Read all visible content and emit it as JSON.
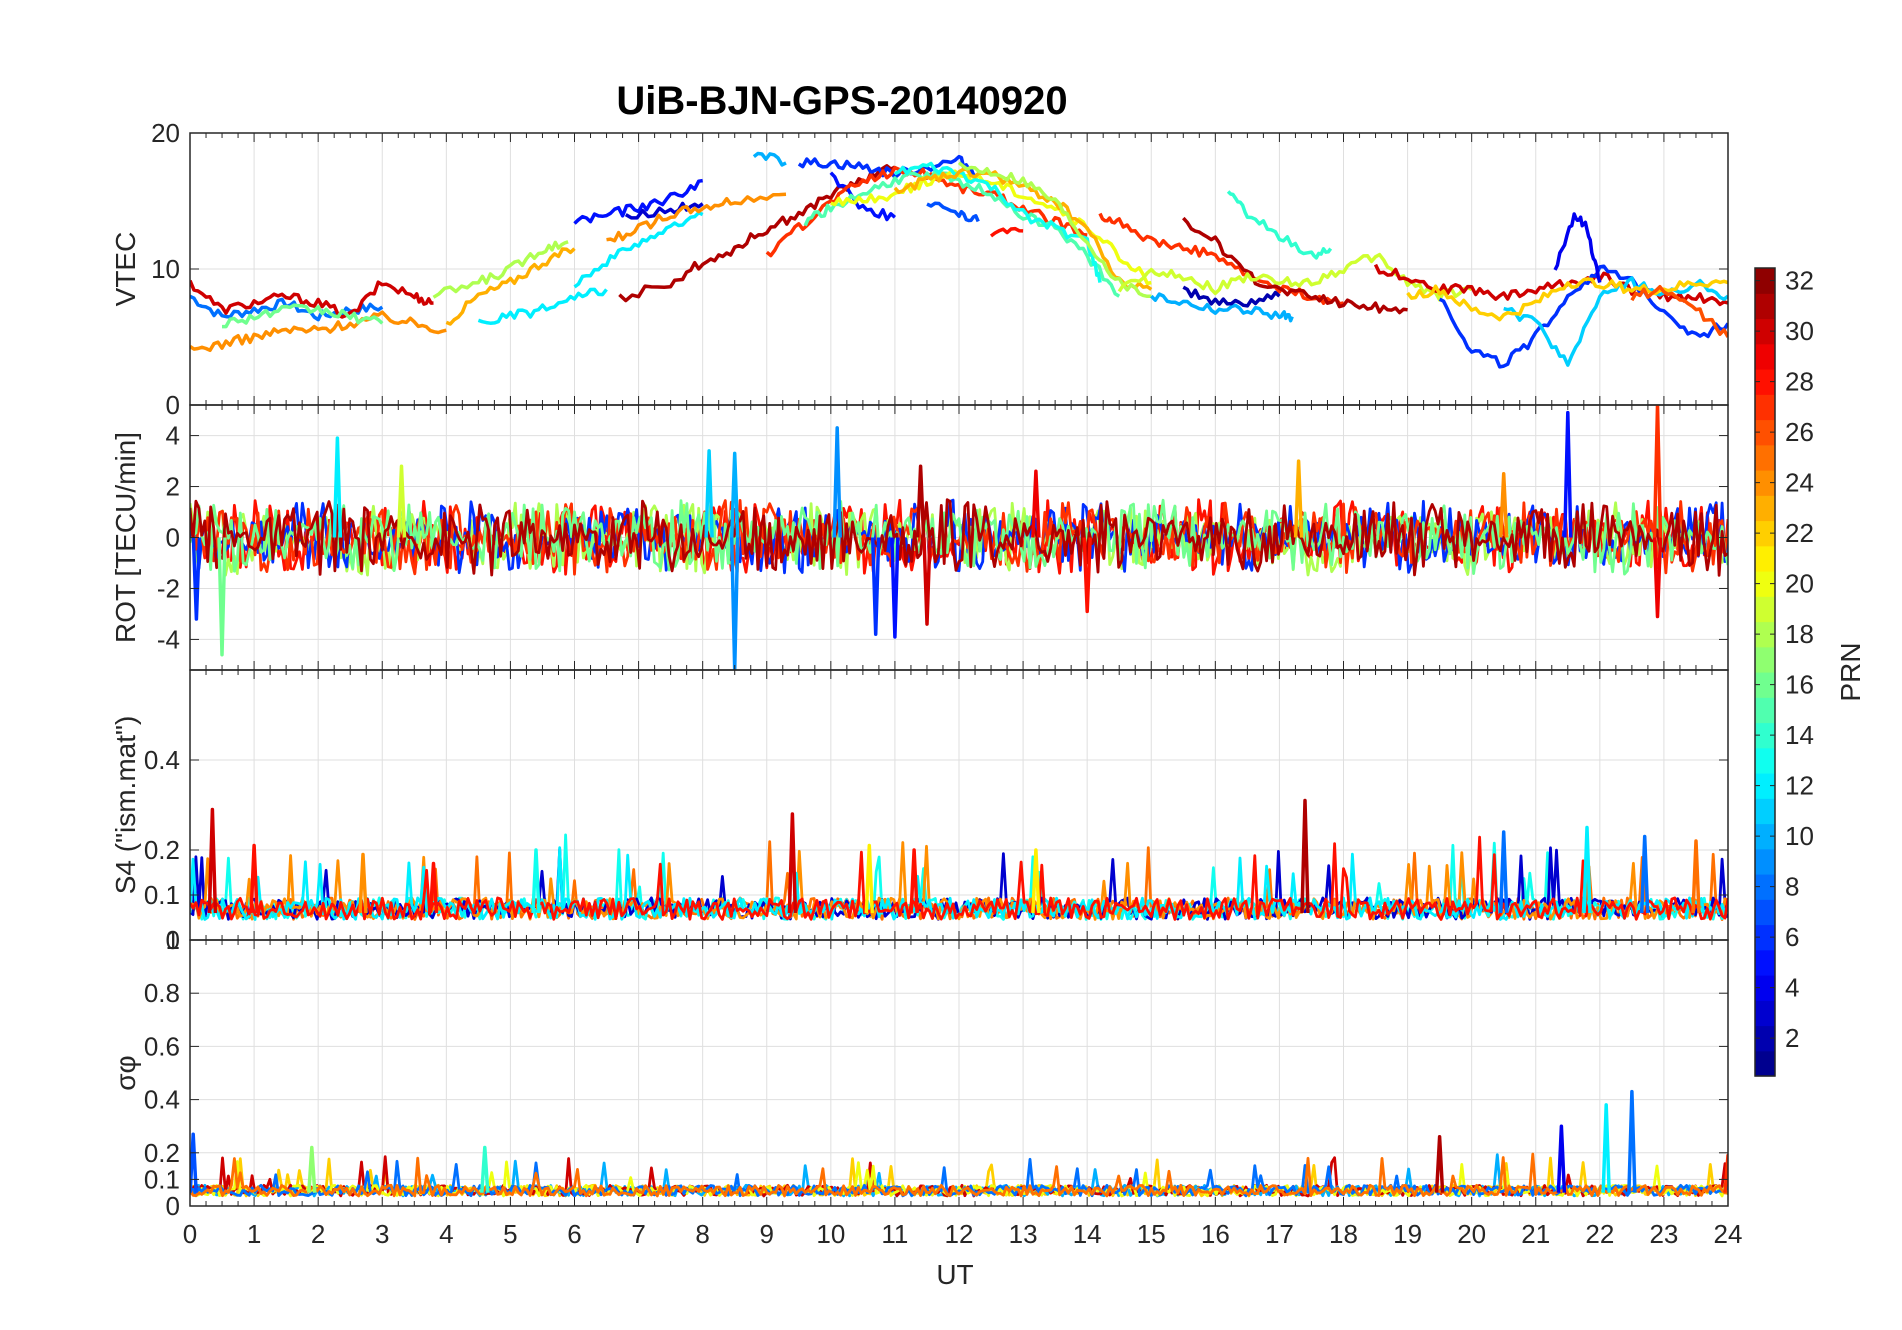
{
  "chart_data": {
    "type": "line",
    "title": "UiB-BJN-GPS-20140920",
    "xlabel": "UT",
    "xlim": [
      0,
      24
    ],
    "x_ticks": [
      "0",
      "1",
      "2",
      "3",
      "4",
      "5",
      "6",
      "7",
      "8",
      "9",
      "10",
      "11",
      "12",
      "13",
      "14",
      "15",
      "16",
      "17",
      "18",
      "19",
      "20",
      "21",
      "22",
      "23",
      "24"
    ],
    "grid": true,
    "panels": [
      {
        "name": "vtec",
        "ylabel": "VTEC",
        "ylim": [
          0,
          20
        ],
        "y_ticks": [
          "0",
          "10",
          "20"
        ],
        "y_tick_values": [
          0,
          10,
          20
        ],
        "series": [
          {
            "prn": 8,
            "x": [
              0,
              0.5,
              1,
              1.5,
              2,
              2.5,
              3
            ],
            "y": [
              8,
              6.5,
              7,
              7.5,
              6.5,
              7,
              7.2
            ]
          },
          {
            "prn": 30,
            "x": [
              0,
              0.5,
              1,
              1.5,
              2,
              2.5,
              3,
              3.5,
              3.8
            ],
            "y": [
              9,
              7,
              7.5,
              8,
              7.5,
              6.5,
              9,
              8,
              7.5
            ]
          },
          {
            "prn": 24,
            "x": [
              0,
              0.5,
              1,
              1.5,
              2,
              2.5,
              3,
              3.5,
              4
            ],
            "y": [
              4,
              4.5,
              5,
              5.5,
              5.5,
              6,
              6.5,
              6,
              5.5
            ]
          },
          {
            "prn": 16,
            "x": [
              0.5,
              1,
              1.5,
              2,
              2.5,
              3
            ],
            "y": [
              6,
              6.5,
              7,
              7,
              6.5,
              6
            ]
          },
          {
            "prn": 18,
            "x": [
              3.8,
              4.5,
              5,
              5.5,
              5.9
            ],
            "y": [
              8,
              9,
              10,
              11.5,
              12
            ]
          },
          {
            "prn": 23,
            "x": [
              4,
              4.5,
              5,
              5.5,
              6
            ],
            "y": [
              6,
              8,
              9,
              10.5,
              11.5
            ]
          },
          {
            "prn": 12,
            "x": [
              4.5,
              5,
              5.5,
              6,
              6.5
            ],
            "y": [
              6,
              6.5,
              7,
              7.8,
              8.5
            ]
          },
          {
            "prn": 12,
            "x": [
              6,
              6.5,
              7,
              7.5,
              8
            ],
            "y": [
              9,
              10.5,
              12,
              13,
              14
            ]
          },
          {
            "prn": 5,
            "x": [
              6,
              6.5,
              7,
              7.5,
              8
            ],
            "y": [
              13.5,
              14,
              14.5,
              15.2,
              16.5
            ]
          },
          {
            "prn": 3,
            "x": [
              6.8,
              7.5,
              8
            ],
            "y": [
              14,
              14.3,
              14.8
            ]
          },
          {
            "prn": 24,
            "x": [
              6.5,
              7,
              7.5,
              8,
              8.5,
              9.3
            ],
            "y": [
              12,
              13,
              14,
              14.5,
              15,
              15.5
            ]
          },
          {
            "prn": 31,
            "x": [
              6.7,
              7.5,
              8,
              8.5,
              9,
              9.5,
              10,
              10.5,
              11
            ],
            "y": [
              7.8,
              9,
              10.5,
              11.5,
              13,
              14,
              15.5,
              16.5,
              17.5
            ]
          },
          {
            "prn": 10,
            "x": [
              8.8,
              9.3
            ],
            "y": [
              18.5,
              17.8
            ]
          },
          {
            "prn": 6,
            "x": [
              9.5,
              10,
              10.5,
              11,
              11.5,
              12,
              12.3
            ],
            "y": [
              17.8,
              17.8,
              17.5,
              17,
              17.5,
              18,
              17
            ]
          },
          {
            "prn": 5,
            "x": [
              10,
              10.5,
              11
            ],
            "y": [
              17,
              14.5,
              13.8
            ]
          },
          {
            "prn": 27,
            "x": [
              9,
              9.5,
              10,
              10.5,
              11,
              11.5,
              12,
              12.5,
              13,
              13.5,
              14
            ],
            "y": [
              11,
              13,
              15,
              16.5,
              17.2,
              17,
              16,
              15.5,
              14.5,
              13.5,
              12.5
            ]
          },
          {
            "prn": 15,
            "x": [
              9.6,
              10,
              10.5,
              11,
              11.5,
              12,
              12.5,
              13,
              13.5,
              14,
              14.5
            ],
            "y": [
              13.5,
              14.5,
              15.5,
              16.5,
              17,
              16.5,
              15.5,
              14,
              13,
              11,
              8
            ]
          },
          {
            "prn": 20,
            "x": [
              10,
              10.5,
              11,
              11.5,
              12,
              12.5,
              13,
              13.5,
              14,
              14.5,
              15
            ],
            "y": [
              15,
              15,
              15.5,
              16.5,
              17,
              16.5,
              15.5,
              14.5,
              13,
              11,
              9
            ]
          },
          {
            "prn": 13,
            "x": [
              11,
              11.5,
              12,
              12.5,
              13,
              13.5,
              14,
              14.2
            ],
            "y": [
              17,
              17.5,
              17,
              16,
              14,
              13,
              12,
              9
            ]
          },
          {
            "prn": 23,
            "x": [
              11,
              11.5,
              12,
              12.5,
              13,
              13.5,
              14,
              14.5,
              15
            ],
            "y": [
              15.8,
              16.5,
              17,
              17,
              16,
              15,
              13,
              9,
              8.5
            ]
          },
          {
            "prn": 18,
            "x": [
              12,
              12.5,
              13,
              13.5,
              14,
              14.5,
              15
            ],
            "y": [
              17.5,
              17.2,
              16.5,
              15,
              12,
              9,
              8
            ]
          },
          {
            "prn": 7,
            "x": [
              11.5,
              12,
              12.3
            ],
            "y": [
              15,
              14,
              13.5
            ]
          },
          {
            "prn": 28,
            "x": [
              12.5,
              13
            ],
            "y": [
              12.5,
              12.8
            ]
          },
          {
            "prn": 27,
            "x": [
              14.2,
              14.5,
              15,
              15.5,
              16,
              16.5,
              17,
              17.5,
              18
            ],
            "y": [
              14,
              13.5,
              12,
              11.5,
              11,
              9.5,
              8.5,
              8,
              7.5
            ]
          },
          {
            "prn": 31,
            "x": [
              15.5,
              16,
              16.5,
              17,
              17.5,
              18,
              18.5,
              19
            ],
            "y": [
              13.5,
              12,
              9.5,
              8.5,
              8,
              7.5,
              7.2,
              7
            ]
          },
          {
            "prn": 14,
            "x": [
              16.2,
              16.5,
              17,
              17.5,
              17.8
            ],
            "y": [
              16,
              14,
              12.5,
              11,
              11.5
            ]
          },
          {
            "prn": 19,
            "x": [
              14.5,
              15,
              15.5,
              16,
              16.5,
              17,
              17.5,
              18,
              18.5,
              19,
              19.5,
              20
            ],
            "y": [
              8.5,
              10,
              9.5,
              8.5,
              9.5,
              9,
              9,
              10,
              11,
              9,
              8,
              8.5
            ]
          },
          {
            "prn": 10,
            "x": [
              15,
              15.5,
              16,
              16.5,
              17,
              17.2
            ],
            "y": [
              8,
              7.5,
              7,
              7,
              6.5,
              6.5
            ]
          },
          {
            "prn": 2,
            "x": [
              15.5,
              16,
              16.5,
              17
            ],
            "y": [
              8.5,
              7.5,
              7.5,
              8
            ]
          },
          {
            "prn": 30,
            "x": [
              18.5,
              19,
              19.5,
              20,
              20.5,
              21,
              21.5,
              22,
              22.5,
              23,
              23.5,
              24
            ],
            "y": [
              10,
              9.5,
              8.5,
              8.5,
              8,
              8.5,
              9,
              9.5,
              8.5,
              8,
              8,
              7.5
            ]
          },
          {
            "prn": 6,
            "x": [
              19.5,
              20,
              20.5,
              21,
              21.5,
              22,
              22.5,
              23,
              23.5,
              24
            ],
            "y": [
              8,
              4,
              3,
              5,
              8,
              10,
              9,
              7,
              5,
              6
            ]
          },
          {
            "prn": 4,
            "x": [
              21.3,
              21.6,
              21.8,
              22
            ],
            "y": [
              10,
              14,
              13,
              9
            ]
          },
          {
            "prn": 11,
            "x": [
              20.5,
              21,
              21.5,
              22,
              22.5,
              23,
              23.5,
              24
            ],
            "y": [
              7,
              6,
              3,
              8,
              9,
              8,
              9,
              8
            ]
          },
          {
            "prn": 22,
            "x": [
              19,
              19.5,
              20,
              20.5,
              21,
              21.5,
              22,
              22.5,
              23,
              23.5,
              24
            ],
            "y": [
              8,
              8.5,
              7,
              6.5,
              7.5,
              9,
              9,
              8.5,
              8.5,
              9,
              9
            ]
          },
          {
            "prn": 26,
            "x": [
              22.5,
              23,
              23.5,
              24
            ],
            "y": [
              8,
              8.5,
              7,
              5
            ]
          }
        ]
      },
      {
        "name": "rot",
        "ylabel": "ROT [TECU/min]",
        "ylim": [
          -5.2,
          5.2
        ],
        "y_ticks": [
          "-4",
          "-2",
          "0",
          "2",
          "4"
        ],
        "y_tick_values": [
          -4,
          -2,
          0,
          2,
          4
        ],
        "spikes": [
          {
            "x": 0.1,
            "y": -3.2,
            "prn": 6
          },
          {
            "x": 0.5,
            "y": -4.6,
            "prn": 16
          },
          {
            "x": 2.3,
            "y": 3.9,
            "prn": 12
          },
          {
            "x": 3.3,
            "y": 2.8,
            "prn": 19
          },
          {
            "x": 8.1,
            "y": 3.4,
            "prn": 11
          },
          {
            "x": 8.5,
            "y": -5.2,
            "prn": 9
          },
          {
            "x": 8.5,
            "y": 3.3,
            "prn": 10
          },
          {
            "x": 10.1,
            "y": 4.3,
            "prn": 9
          },
          {
            "x": 10.7,
            "y": -3.8,
            "prn": 6
          },
          {
            "x": 11.0,
            "y": -3.9,
            "prn": 5
          },
          {
            "x": 11.4,
            "y": 2.8,
            "prn": 31
          },
          {
            "x": 11.5,
            "y": -3.4,
            "prn": 30
          },
          {
            "x": 13.2,
            "y": 2.6,
            "prn": 29
          },
          {
            "x": 14.0,
            "y": -2.9,
            "prn": 28
          },
          {
            "x": 17.3,
            "y": 3.0,
            "prn": 23
          },
          {
            "x": 20.5,
            "y": 2.5,
            "prn": 24
          },
          {
            "x": 21.5,
            "y": 4.9,
            "prn": 5
          },
          {
            "x": 22.9,
            "y": 5.2,
            "prn": 27
          },
          {
            "x": 22.9,
            "y": -3.1,
            "prn": 29
          }
        ]
      },
      {
        "name": "s4",
        "ylabel": "S4 (\"ism.mat\")",
        "ylim": [
          0,
          0.6
        ],
        "y_ticks": [
          "0",
          "0.1",
          "0.2",
          "0.4"
        ],
        "y_tick_values": [
          0,
          0.1,
          0.2,
          0.4
        ],
        "baseline": 0.06,
        "spikes": [
          {
            "x": 0.35,
            "y": 0.29,
            "prn": 30
          },
          {
            "x": 1.0,
            "y": 0.21,
            "prn": 28
          },
          {
            "x": 2.7,
            "y": 0.19,
            "prn": 24
          },
          {
            "x": 3.8,
            "y": 0.17,
            "prn": 28
          },
          {
            "x": 5.4,
            "y": 0.2,
            "prn": 13
          },
          {
            "x": 9.4,
            "y": 0.28,
            "prn": 30
          },
          {
            "x": 10.6,
            "y": 0.21,
            "prn": 21
          },
          {
            "x": 11.3,
            "y": 0.2,
            "prn": 28
          },
          {
            "x": 13.2,
            "y": 0.2,
            "prn": 21
          },
          {
            "x": 17.4,
            "y": 0.31,
            "prn": 31
          },
          {
            "x": 20.5,
            "y": 0.24,
            "prn": 8
          },
          {
            "x": 21.8,
            "y": 0.25,
            "prn": 12
          },
          {
            "x": 22.7,
            "y": 0.23,
            "prn": 8
          },
          {
            "x": 23.5,
            "y": 0.22,
            "prn": 25
          }
        ]
      },
      {
        "name": "sigma_phi",
        "ylabel": "σφ",
        "ylim": [
          0,
          1
        ],
        "y_ticks": [
          "0",
          "0.1",
          "0.2",
          "0.4",
          "0.6",
          "0.8",
          "1"
        ],
        "y_tick_values": [
          0,
          0.1,
          0.2,
          0.4,
          0.6,
          0.8,
          1
        ],
        "baseline": 0.05,
        "spikes": [
          {
            "x": 0.05,
            "y": 0.27,
            "prn": 7
          },
          {
            "x": 1.9,
            "y": 0.22,
            "prn": 17
          },
          {
            "x": 4.6,
            "y": 0.22,
            "prn": 14
          },
          {
            "x": 19.5,
            "y": 0.26,
            "prn": 31
          },
          {
            "x": 21.4,
            "y": 0.3,
            "prn": 4
          },
          {
            "x": 22.1,
            "y": 0.38,
            "prn": 12
          },
          {
            "x": 22.5,
            "y": 0.43,
            "prn": 8
          },
          {
            "x": 24,
            "y": 0.19,
            "prn": 27
          }
        ]
      }
    ],
    "colorbar": {
      "label": "PRN",
      "range": [
        1,
        32
      ],
      "colormap": "jet",
      "ticks": [
        "2",
        "4",
        "6",
        "8",
        "10",
        "12",
        "14",
        "16",
        "18",
        "20",
        "22",
        "24",
        "26",
        "28",
        "30",
        "32"
      ],
      "tick_values": [
        2,
        4,
        6,
        8,
        10,
        12,
        14,
        16,
        18,
        20,
        22,
        24,
        26,
        28,
        30,
        32
      ]
    }
  }
}
